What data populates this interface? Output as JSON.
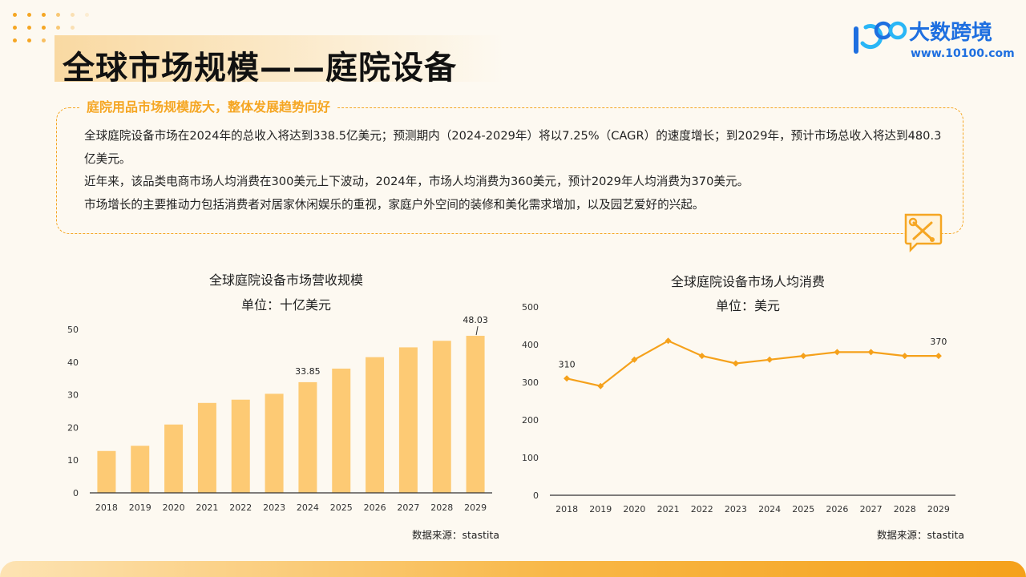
{
  "header": {
    "title": "全球市场规模——庭院设备"
  },
  "logo": {
    "name": "大数跨境",
    "url": "www.10100.com"
  },
  "summary": {
    "heading": "庭院用品市场规模庞大，整体发展趋势向好",
    "paragraphs": [
      "全球庭院设备市场在2024年的总收入将达到338.5亿美元；预测期内（2024-2029年）将以7.25%（CAGR）的速度增长；到2029年，预计市场总收入将达到480.3亿美元。",
      "近年来，该品类电商市场人均消费在300美元上下波动，2024年，市场人均消费为360美元，预计2029年人均消费为370美元。",
      "市场增长的主要推动力包括消费者对居家休闲娱乐的重视，家庭户外空间的装修和美化需求增加，以及园艺爱好的兴起。"
    ]
  },
  "icons": {
    "logo": "logo-1000-icon",
    "tools": "wrench-screwdriver-icon"
  },
  "colors": {
    "accent": "#f5a623",
    "bar": "#fdca74",
    "line": "#f5a11b",
    "brand": "#1e6fe0"
  },
  "charts": {
    "left_source": "数据来源：stastita",
    "right_source": "数据来源：stastita"
  },
  "chart_data": [
    {
      "type": "bar",
      "title": "全球庭院设备市场营收规模",
      "subtitle": "单位：十亿美元",
      "categories": [
        "2018",
        "2019",
        "2020",
        "2021",
        "2022",
        "2023",
        "2024",
        "2025",
        "2026",
        "2027",
        "2028",
        "2029"
      ],
      "values": [
        12.8,
        14.4,
        20.9,
        27.5,
        28.5,
        30.3,
        33.85,
        38.0,
        41.5,
        44.5,
        46.5,
        48.03
      ],
      "data_labels": {
        "6": "33.85",
        "11": "48.03"
      },
      "ylim": [
        0,
        50
      ],
      "yticks": [
        0,
        10,
        20,
        30,
        40,
        50
      ],
      "grid": false
    },
    {
      "type": "line",
      "title": "全球庭院设备市场人均消费",
      "subtitle": "单位：美元",
      "categories": [
        "2018",
        "2019",
        "2020",
        "2021",
        "2022",
        "2023",
        "2024",
        "2025",
        "2026",
        "2027",
        "2028",
        "2029"
      ],
      "values": [
        310,
        290,
        360,
        410,
        370,
        350,
        360,
        370,
        380,
        380,
        370,
        370
      ],
      "data_labels": {
        "0": "310",
        "11": "370"
      },
      "ylim": [
        0,
        500
      ],
      "yticks": [
        0,
        100,
        200,
        300,
        400,
        500
      ],
      "grid": false
    }
  ]
}
